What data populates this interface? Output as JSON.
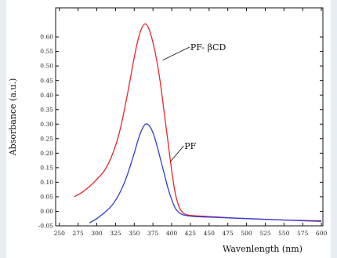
{
  "chart_data": {
    "type": "line",
    "xlabel": "Wavenlength (nm)",
    "ylabel": "Absorbance (a.u.)",
    "xlim": [
      245,
      602
    ],
    "ylim": [
      -0.05,
      0.7
    ],
    "xticks": [
      250,
      275,
      300,
      325,
      350,
      375,
      400,
      425,
      450,
      475,
      500,
      525,
      550,
      575,
      600
    ],
    "yticks": [
      -0.05,
      0.0,
      0.05,
      0.1,
      0.15,
      0.2,
      0.25,
      0.3,
      0.35,
      0.4,
      0.45,
      0.5,
      0.55,
      0.6
    ],
    "xtick_labels": [
      "250",
      "275",
      "300",
      "325",
      "350",
      "375",
      "400",
      "425",
      "450",
      "475",
      "500",
      "525",
      "550",
      "575",
      "600"
    ],
    "ytick_labels": [
      "-0.05",
      "0.00",
      "0.05",
      "0.10",
      "0.15",
      "0.20",
      "0.25",
      "0.30",
      "0.35",
      "0.40",
      "0.45",
      "0.50",
      "0.55",
      "0.60"
    ],
    "grid": false,
    "series": [
      {
        "name": "PF- βCD",
        "color": "#e8262b",
        "x": [
          270,
          280,
          290,
          300,
          310,
          320,
          330,
          340,
          350,
          355,
          360,
          365,
          370,
          375,
          380,
          385,
          390,
          395,
          400,
          405,
          410,
          415,
          420,
          430,
          450,
          500,
          550,
          600
        ],
        "y": [
          0.05,
          0.065,
          0.085,
          0.11,
          0.14,
          0.19,
          0.27,
          0.39,
          0.53,
          0.59,
          0.63,
          0.645,
          0.625,
          0.58,
          0.52,
          0.44,
          0.34,
          0.24,
          0.14,
          0.06,
          0.015,
          -0.005,
          -0.012,
          -0.015,
          -0.018,
          -0.025,
          -0.03,
          -0.035
        ]
      },
      {
        "name": "PF",
        "color": "#2f3fd6",
        "x": [
          290,
          300,
          310,
          320,
          330,
          340,
          350,
          355,
          360,
          365,
          370,
          375,
          380,
          385,
          390,
          395,
          400,
          405,
          410,
          415,
          420,
          430,
          450,
          500,
          550,
          600
        ],
        "y": [
          -0.04,
          -0.025,
          -0.005,
          0.02,
          0.06,
          0.12,
          0.2,
          0.245,
          0.28,
          0.3,
          0.295,
          0.27,
          0.23,
          0.18,
          0.13,
          0.08,
          0.04,
          0.01,
          -0.005,
          -0.012,
          -0.015,
          -0.018,
          -0.02,
          -0.025,
          -0.03,
          -0.033
        ]
      }
    ]
  }
}
